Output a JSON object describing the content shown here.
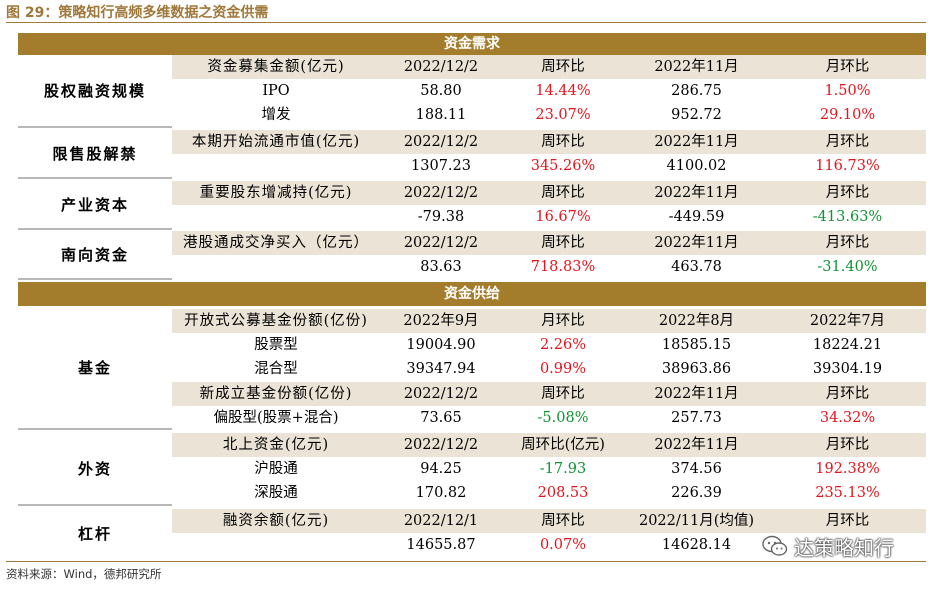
{
  "figure_title": "图 29：策略知行高频多维数据之资金供需",
  "source": "资料来源：Wind，德邦研究所",
  "watermark": "达策略知行",
  "demand_header": "资金需求",
  "supply_header": "资金供给",
  "colors": {
    "accent": "#a47d2c",
    "header_band": "#ebe4d6",
    "up": "#e8141c",
    "down": "#0f9432"
  },
  "groups": [
    {
      "label": "股权融资规模",
      "header": [
        "资金募集金额(亿元)",
        "2022/12/2",
        "周环比",
        "2022年11月",
        "月环比"
      ],
      "rows": [
        [
          {
            "t": "IPO"
          },
          {
            "t": "58.80"
          },
          {
            "t": "14.44%",
            "c": "red"
          },
          {
            "t": "286.75"
          },
          {
            "t": "1.50%",
            "c": "red"
          }
        ],
        [
          {
            "t": "增发"
          },
          {
            "t": "188.11"
          },
          {
            "t": "23.07%",
            "c": "red"
          },
          {
            "t": "952.72"
          },
          {
            "t": "29.10%",
            "c": "red"
          }
        ]
      ]
    },
    {
      "label": "限售股解禁",
      "header": [
        "本期开始流通市值(亿元)",
        "2022/12/2",
        "周环比",
        "2022年11月",
        "月环比"
      ],
      "rows": [
        [
          {
            "t": ""
          },
          {
            "t": "1307.23"
          },
          {
            "t": "345.26%",
            "c": "red"
          },
          {
            "t": "4100.02"
          },
          {
            "t": "116.73%",
            "c": "red"
          }
        ]
      ]
    },
    {
      "label": "产业资本",
      "header": [
        "重要股东增减持(亿元)",
        "2022/12/2",
        "周环比",
        "2022年11月",
        "月环比"
      ],
      "rows": [
        [
          {
            "t": ""
          },
          {
            "t": "-79.38"
          },
          {
            "t": "16.67%",
            "c": "red"
          },
          {
            "t": "-449.59"
          },
          {
            "t": "-413.63%",
            "c": "green"
          }
        ]
      ]
    },
    {
      "label": "南向资金",
      "header": [
        "港股通成交净买入（亿元）",
        "2022/12/2",
        "周环比",
        "2022年11月",
        "月环比"
      ],
      "rows": [
        [
          {
            "t": ""
          },
          {
            "t": "83.63"
          },
          {
            "t": "718.83%",
            "c": "red"
          },
          {
            "t": "463.78"
          },
          {
            "t": "-31.40%",
            "c": "green"
          }
        ]
      ]
    },
    {
      "label": "基金",
      "header": [
        "开放式公募基金份额(亿份)",
        "2022年9月",
        "月环比",
        "2022年8月",
        "2022年7月"
      ],
      "rows": [
        [
          {
            "t": "股票型"
          },
          {
            "t": "19004.90"
          },
          {
            "t": "2.26%",
            "c": "red"
          },
          {
            "t": "18585.15"
          },
          {
            "t": "18224.21"
          }
        ],
        [
          {
            "t": "混合型"
          },
          {
            "t": "39347.94"
          },
          {
            "t": "0.99%",
            "c": "red"
          },
          {
            "t": "38963.86"
          },
          {
            "t": "39304.19"
          }
        ]
      ],
      "header2": [
        "新成立基金份额(亿份)",
        "2022/12/2",
        "周环比",
        "2022年11月",
        "月环比"
      ],
      "rows2": [
        [
          {
            "t": "偏股型(股票+混合)"
          },
          {
            "t": "73.65"
          },
          {
            "t": "-5.08%",
            "c": "green"
          },
          {
            "t": "257.73"
          },
          {
            "t": "34.32%",
            "c": "red"
          }
        ]
      ]
    },
    {
      "label": "外资",
      "header": [
        "北上资金(亿元)",
        "2022/12/2",
        "周环比(亿元)",
        "2022年11月",
        "月环比"
      ],
      "rows": [
        [
          {
            "t": "沪股通"
          },
          {
            "t": "94.25"
          },
          {
            "t": "-17.93",
            "c": "green"
          },
          {
            "t": "374.56"
          },
          {
            "t": "192.38%",
            "c": "red"
          }
        ],
        [
          {
            "t": "深股通"
          },
          {
            "t": "170.82"
          },
          {
            "t": "208.53",
            "c": "red"
          },
          {
            "t": "226.39"
          },
          {
            "t": "235.13%",
            "c": "red"
          }
        ]
      ]
    },
    {
      "label": "杠杆",
      "header": [
        "融资余额(亿元)",
        "2022/12/1",
        "周环比",
        "2022/11月(均值)",
        "月环比"
      ],
      "rows": [
        [
          {
            "t": ""
          },
          {
            "t": "14655.87"
          },
          {
            "t": "0.07%",
            "c": "red"
          },
          {
            "t": "14628.14"
          },
          {
            "t": ""
          }
        ]
      ]
    }
  ]
}
